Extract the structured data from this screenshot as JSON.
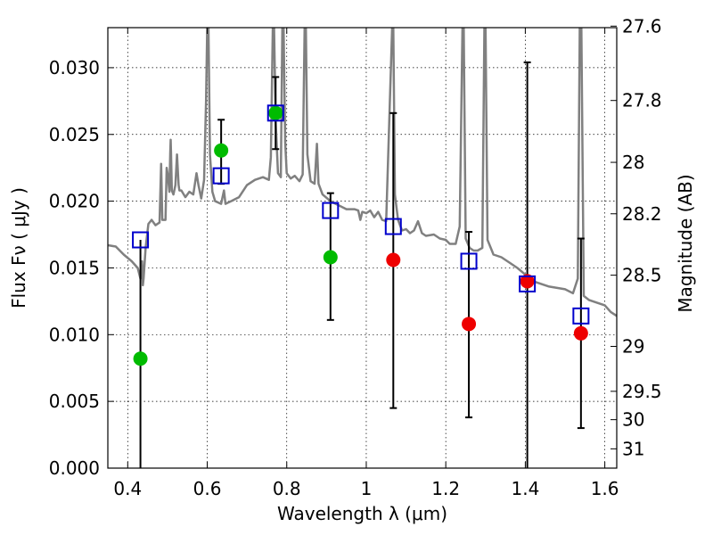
{
  "chart_data": {
    "type": "scatter",
    "xlabel": "Wavelength  λ (μm)",
    "ylabel": "Flux  Fν  ( μJy )",
    "ylabel_right": "Magnitude (AB)",
    "xlim": [
      0.35,
      1.63
    ],
    "ylim": [
      0.0,
      0.033
    ],
    "grid": true,
    "x_ticks": [
      {
        "value": 0.4,
        "label": "0.4"
      },
      {
        "value": 0.6,
        "label": "0.6"
      },
      {
        "value": 0.8,
        "label": "0.8"
      },
      {
        "value": 1.0,
        "label": "1"
      },
      {
        "value": 1.2,
        "label": "1.2"
      },
      {
        "value": 1.4,
        "label": "1.4"
      },
      {
        "value": 1.6,
        "label": "1.6"
      }
    ],
    "y_ticks": [
      {
        "value": 0.0,
        "label": "0.000"
      },
      {
        "value": 0.005,
        "label": "0.005"
      },
      {
        "value": 0.01,
        "label": "0.010"
      },
      {
        "value": 0.015,
        "label": "0.015"
      },
      {
        "value": 0.02,
        "label": "0.020"
      },
      {
        "value": 0.025,
        "label": "0.025"
      },
      {
        "value": 0.03,
        "label": "0.030"
      }
    ],
    "right_ticks": [
      {
        "mag": 27.6,
        "label": "27.6"
      },
      {
        "mag": 27.8,
        "label": "27.8"
      },
      {
        "mag": 28.0,
        "label": "28"
      },
      {
        "mag": 28.2,
        "label": "28.2"
      },
      {
        "mag": 28.5,
        "label": "28.5"
      },
      {
        "mag": 29.0,
        "label": "29"
      },
      {
        "mag": 29.5,
        "label": "29.5"
      },
      {
        "mag": 30.0,
        "label": "30"
      },
      {
        "mag": 31.0,
        "label": "31"
      }
    ],
    "colors": {
      "spectrum": "#808080",
      "green": "#00bb00",
      "red": "#ee0000",
      "model": "#0000cc",
      "errorbar": "#000000"
    },
    "spectrum": [
      [
        0.35,
        0.0167
      ],
      [
        0.37,
        0.0166
      ],
      [
        0.39,
        0.016
      ],
      [
        0.41,
        0.0155
      ],
      [
        0.425,
        0.015
      ],
      [
        0.432,
        0.0142
      ],
      [
        0.436,
        0.0155
      ],
      [
        0.438,
        0.0137
      ],
      [
        0.44,
        0.0142
      ],
      [
        0.445,
        0.0165
      ],
      [
        0.452,
        0.0183
      ],
      [
        0.46,
        0.0186
      ],
      [
        0.47,
        0.0182
      ],
      [
        0.48,
        0.0184
      ],
      [
        0.484,
        0.0228
      ],
      [
        0.487,
        0.0186
      ],
      [
        0.495,
        0.0186
      ],
      [
        0.498,
        0.0225
      ],
      [
        0.501,
        0.0219
      ],
      [
        0.505,
        0.0207
      ],
      [
        0.507,
        0.0236
      ],
      [
        0.508,
        0.0246
      ],
      [
        0.509,
        0.0236
      ],
      [
        0.511,
        0.0208
      ],
      [
        0.515,
        0.0205
      ],
      [
        0.52,
        0.0212
      ],
      [
        0.524,
        0.0235
      ],
      [
        0.528,
        0.0212
      ],
      [
        0.53,
        0.0208
      ],
      [
        0.535,
        0.0208
      ],
      [
        0.545,
        0.0203
      ],
      [
        0.555,
        0.0207
      ],
      [
        0.565,
        0.0205
      ],
      [
        0.573,
        0.0221
      ],
      [
        0.578,
        0.0212
      ],
      [
        0.585,
        0.0202
      ],
      [
        0.592,
        0.0216
      ],
      [
        0.597,
        0.0275
      ],
      [
        0.6,
        0.033
      ],
      [
        0.603,
        0.033
      ],
      [
        0.607,
        0.0235
      ],
      [
        0.613,
        0.0207
      ],
      [
        0.62,
        0.02
      ],
      [
        0.635,
        0.0198
      ],
      [
        0.642,
        0.0208
      ],
      [
        0.646,
        0.0198
      ],
      [
        0.66,
        0.02
      ],
      [
        0.68,
        0.0203
      ],
      [
        0.7,
        0.0212
      ],
      [
        0.72,
        0.0216
      ],
      [
        0.74,
        0.0218
      ],
      [
        0.755,
        0.0216
      ],
      [
        0.76,
        0.0233
      ],
      [
        0.765,
        0.033
      ],
      [
        0.768,
        0.033
      ],
      [
        0.772,
        0.026
      ],
      [
        0.778,
        0.0221
      ],
      [
        0.785,
        0.0218
      ],
      [
        0.789,
        0.033
      ],
      [
        0.792,
        0.033
      ],
      [
        0.796,
        0.0244
      ],
      [
        0.8,
        0.0221
      ],
      [
        0.81,
        0.0217
      ],
      [
        0.82,
        0.0219
      ],
      [
        0.832,
        0.0215
      ],
      [
        0.84,
        0.022
      ],
      [
        0.845,
        0.033
      ],
      [
        0.848,
        0.033
      ],
      [
        0.852,
        0.0235
      ],
      [
        0.86,
        0.0215
      ],
      [
        0.87,
        0.0213
      ],
      [
        0.876,
        0.0243
      ],
      [
        0.88,
        0.0213
      ],
      [
        0.89,
        0.0205
      ],
      [
        0.91,
        0.02
      ],
      [
        0.93,
        0.0197
      ],
      [
        0.95,
        0.0194
      ],
      [
        0.97,
        0.0194
      ],
      [
        0.98,
        0.0193
      ],
      [
        0.985,
        0.0186
      ],
      [
        0.99,
        0.0192
      ],
      [
        1.0,
        0.0191
      ],
      [
        1.01,
        0.0193
      ],
      [
        1.02,
        0.0188
      ],
      [
        1.03,
        0.0192
      ],
      [
        1.04,
        0.0186
      ],
      [
        1.05,
        0.0185
      ],
      [
        1.065,
        0.033
      ],
      [
        1.068,
        0.033
      ],
      [
        1.072,
        0.0205
      ],
      [
        1.08,
        0.0186
      ],
      [
        1.09,
        0.0178
      ],
      [
        1.1,
        0.0179
      ],
      [
        1.11,
        0.0176
      ],
      [
        1.12,
        0.0178
      ],
      [
        1.13,
        0.0185
      ],
      [
        1.14,
        0.0176
      ],
      [
        1.15,
        0.0174
      ],
      [
        1.17,
        0.0175
      ],
      [
        1.185,
        0.0172
      ],
      [
        1.2,
        0.0171
      ],
      [
        1.21,
        0.0168
      ],
      [
        1.225,
        0.0168
      ],
      [
        1.235,
        0.0181
      ],
      [
        1.242,
        0.033
      ],
      [
        1.245,
        0.033
      ],
      [
        1.25,
        0.0172
      ],
      [
        1.26,
        0.0165
      ],
      [
        1.27,
        0.0163
      ],
      [
        1.28,
        0.0163
      ],
      [
        1.292,
        0.0165
      ],
      [
        1.297,
        0.033
      ],
      [
        1.3,
        0.033
      ],
      [
        1.305,
        0.0171
      ],
      [
        1.32,
        0.016
      ],
      [
        1.34,
        0.0158
      ],
      [
        1.36,
        0.0154
      ],
      [
        1.38,
        0.015
      ],
      [
        1.4,
        0.0145
      ],
      [
        1.42,
        0.014
      ],
      [
        1.44,
        0.0138
      ],
      [
        1.46,
        0.0136
      ],
      [
        1.48,
        0.0135
      ],
      [
        1.5,
        0.0134
      ],
      [
        1.52,
        0.0131
      ],
      [
        1.532,
        0.0142
      ],
      [
        1.537,
        0.033
      ],
      [
        1.541,
        0.033
      ],
      [
        1.547,
        0.0129
      ],
      [
        1.56,
        0.0126
      ],
      [
        1.58,
        0.0124
      ],
      [
        1.6,
        0.0122
      ],
      [
        1.615,
        0.0117
      ],
      [
        1.63,
        0.0114
      ]
    ],
    "series": [
      {
        "marker": "circle",
        "color": "green",
        "points": [
          {
            "x": 0.432,
            "y": 0.0082
          },
          {
            "x": 0.635,
            "y": 0.0238
          },
          {
            "x": 0.772,
            "y": 0.0266
          },
          {
            "x": 0.91,
            "y": 0.0158
          }
        ]
      },
      {
        "marker": "circle",
        "color": "red",
        "points": [
          {
            "x": 1.068,
            "y": 0.0156
          },
          {
            "x": 1.258,
            "y": 0.0108
          },
          {
            "x": 1.405,
            "y": 0.014
          },
          {
            "x": 1.54,
            "y": 0.0101
          }
        ]
      },
      {
        "marker": "square",
        "color": "model",
        "points": [
          {
            "x": 0.432,
            "y": 0.0171
          },
          {
            "x": 0.635,
            "y": 0.0219
          },
          {
            "x": 0.772,
            "y": 0.0266
          },
          {
            "x": 0.91,
            "y": 0.0193
          },
          {
            "x": 1.068,
            "y": 0.0181
          },
          {
            "x": 1.258,
            "y": 0.0155
          },
          {
            "x": 1.405,
            "y": 0.0138
          },
          {
            "x": 1.54,
            "y": 0.0114
          }
        ]
      }
    ],
    "error_bars": [
      {
        "x": 0.432,
        "low": 0.0,
        "high": 0.0171,
        "caps": false
      },
      {
        "x": 0.635,
        "low": 0.0213,
        "high": 0.0261,
        "caps": true
      },
      {
        "x": 0.772,
        "low": 0.0239,
        "high": 0.0293,
        "caps": true
      },
      {
        "x": 0.91,
        "low": 0.0111,
        "high": 0.0206,
        "caps": true
      },
      {
        "x": 1.068,
        "low": 0.0045,
        "high": 0.0266,
        "caps": true
      },
      {
        "x": 1.258,
        "low": 0.0038,
        "high": 0.0177,
        "caps": true
      },
      {
        "x": 1.405,
        "low": 0.0,
        "high": 0.0304,
        "caps": true
      },
      {
        "x": 1.54,
        "low": 0.003,
        "high": 0.0172,
        "caps": true
      }
    ]
  }
}
